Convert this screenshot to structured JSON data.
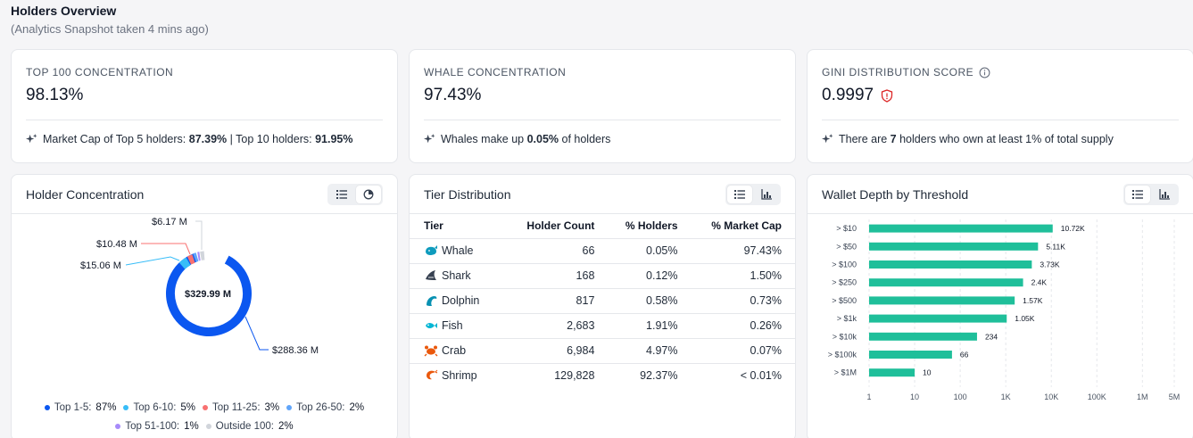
{
  "header": {
    "title": "Holders Overview",
    "subtitle": "(Analytics Snapshot taken 4 mins ago)"
  },
  "kpis": [
    {
      "label": "TOP 100 CONCENTRATION",
      "value": "98.13%",
      "foot": {
        "t1": "Market Cap of Top 5 holders: ",
        "b1": "87.39%",
        "t2": " | Top 10 holders: ",
        "b2": "91.95%"
      }
    },
    {
      "label": "WHALE CONCENTRATION",
      "value": "97.43%",
      "foot": {
        "t1": "Whales make up ",
        "b1": "0.05%",
        "t2": " of holders"
      }
    },
    {
      "label": "GINI DISTRIBUTION SCORE",
      "value": "0.9997",
      "foot": {
        "t1": "There are ",
        "b1": "7",
        "t2": " holders who own at least 1% of total supply"
      }
    }
  ],
  "holder_concentration": {
    "title": "Holder Concentration",
    "center_label": "$329.99 M",
    "callouts": [
      "$6.17 M",
      "$10.48 M",
      "$15.06 M",
      "$288.36 M"
    ],
    "legend": [
      {
        "label": "Top 1-5:",
        "pct": "87%",
        "color": "#0b57f0"
      },
      {
        "label": "Top 6-10:",
        "pct": "5%",
        "color": "#38bdf8"
      },
      {
        "label": "Top 11-25:",
        "pct": "3%",
        "color": "#f87171"
      },
      {
        "label": "Top 26-50:",
        "pct": "2%",
        "color": "#60a5fa"
      },
      {
        "label": "Top 51-100:",
        "pct": "1%",
        "color": "#a78bfa"
      },
      {
        "label": "Outside 100:",
        "pct": "2%",
        "color": "#d1d5db"
      }
    ]
  },
  "tier_distribution": {
    "title": "Tier Distribution",
    "headers": [
      "Tier",
      "Holder Count",
      "% Holders",
      "% Market Cap"
    ],
    "rows": [
      {
        "tier": "Whale",
        "icon": "whale-icon",
        "color": "#0e9bbd",
        "count": "66",
        "holders": "0.05%",
        "mcap": "97.43%"
      },
      {
        "tier": "Shark",
        "icon": "shark-icon",
        "color": "#374151",
        "count": "168",
        "holders": "0.12%",
        "mcap": "1.50%"
      },
      {
        "tier": "Dolphin",
        "icon": "dolphin-icon",
        "color": "#0891b2",
        "count": "817",
        "holders": "0.58%",
        "mcap": "0.73%"
      },
      {
        "tier": "Fish",
        "icon": "fish-icon",
        "color": "#06b6d4",
        "count": "2,683",
        "holders": "1.91%",
        "mcap": "0.26%"
      },
      {
        "tier": "Crab",
        "icon": "crab-icon",
        "color": "#ea580c",
        "count": "6,984",
        "holders": "4.97%",
        "mcap": "0.07%"
      },
      {
        "tier": "Shrimp",
        "icon": "shrimp-icon",
        "color": "#ea580c",
        "count": "129,828",
        "holders": "92.37%",
        "mcap": "< 0.01%"
      }
    ]
  },
  "chart_data": {
    "type": "bar",
    "orientation": "horizontal",
    "title": "Wallet Depth by Threshold",
    "xscale": "log",
    "xlim": [
      1,
      5000000
    ],
    "xticks": [
      {
        "value": 1,
        "label": "1"
      },
      {
        "value": 10,
        "label": "10"
      },
      {
        "value": 100,
        "label": "100"
      },
      {
        "value": 1000,
        "label": "1K"
      },
      {
        "value": 10000,
        "label": "10K"
      },
      {
        "value": 100000,
        "label": "100K"
      },
      {
        "value": 1000000,
        "label": "1M"
      },
      {
        "value": 5000000,
        "label": "5M"
      }
    ],
    "categories": [
      "> $10",
      "> $50",
      "> $100",
      "> $250",
      "> $500",
      "> $1k",
      "> $10k",
      "> $100k",
      "> $1M"
    ],
    "values": [
      10720,
      5110,
      3730,
      2400,
      1570,
      1050,
      234,
      66,
      10
    ],
    "data_labels": [
      "10.72K",
      "5.11K",
      "3.73K",
      "2.4K",
      "1.57K",
      "1.05K",
      "234",
      "66",
      "10"
    ],
    "bar_color": "#1fbf9a",
    "grid": true
  }
}
